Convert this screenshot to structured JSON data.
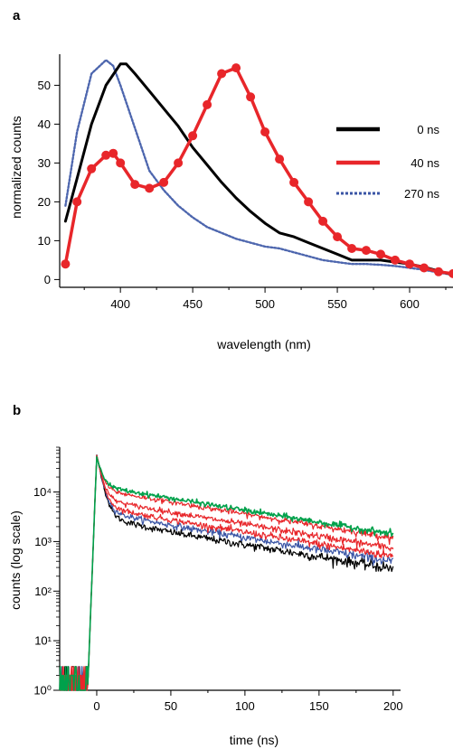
{
  "chart_data": [
    {
      "panel": "a",
      "type": "line",
      "title": "",
      "xlabel": "wavelength (nm)",
      "ylabel": "normalized counts",
      "xlim": [
        358,
        630
      ],
      "ylim": [
        -2,
        58
      ],
      "x_ticks": [
        400,
        450,
        500,
        550,
        600
      ],
      "y_ticks": [
        0,
        10,
        20,
        30,
        40,
        50
      ],
      "grid": false,
      "legend_position": "top-right",
      "series": [
        {
          "name": "0 ns",
          "color": "#000000",
          "style": "solid",
          "x": [
            362,
            370,
            380,
            390,
            400,
            404,
            410,
            420,
            430,
            440,
            450,
            460,
            470,
            480,
            490,
            500,
            510,
            520,
            530,
            540,
            550,
            560,
            570,
            580,
            590,
            600,
            610,
            620,
            630
          ],
          "y": [
            15,
            26,
            40,
            50,
            55.5,
            55.5,
            53,
            48.5,
            44,
            39.5,
            34,
            29.5,
            25,
            21,
            17.5,
            14.5,
            12,
            11,
            9.5,
            8,
            6.5,
            5,
            5,
            5,
            4.5,
            4,
            3.2,
            2.2,
            1.2
          ]
        },
        {
          "name": "40 ns",
          "color": "#e8262a",
          "style": "solid-markers",
          "x": [
            362,
            370,
            380,
            390,
            395,
            400,
            410,
            420,
            430,
            440,
            450,
            460,
            470,
            480,
            490,
            500,
            510,
            520,
            530,
            540,
            550,
            560,
            570,
            580,
            590,
            600,
            610,
            620,
            630
          ],
          "y": [
            4,
            20,
            28.5,
            32,
            32.5,
            30,
            24.5,
            23.5,
            25,
            30,
            37,
            45,
            53,
            54.5,
            47,
            38,
            31,
            25,
            20,
            15,
            11,
            8,
            7.5,
            6.5,
            5,
            4,
            3,
            2,
            1.5
          ]
        },
        {
          "name": "270 ns",
          "color": "#3a55a5",
          "style": "dotted",
          "x": [
            362,
            370,
            380,
            390,
            395,
            400,
            410,
            420,
            430,
            440,
            450,
            460,
            470,
            480,
            490,
            500,
            510,
            520,
            530,
            540,
            550,
            560,
            570,
            580,
            590,
            600,
            610,
            620,
            630
          ],
          "y": [
            19,
            38,
            53,
            56.5,
            55,
            50,
            39,
            28,
            23,
            19,
            16,
            13.5,
            12,
            10.5,
            9.5,
            8.5,
            8,
            7,
            6,
            5,
            4.5,
            4,
            4,
            3.8,
            3.5,
            3,
            2.5,
            1.8,
            1.2
          ]
        }
      ]
    },
    {
      "panel": "b",
      "type": "line",
      "title": "",
      "xlabel": "time (ns)",
      "ylabel": "counts (log scale)",
      "xlim": [
        -25,
        205
      ],
      "ylim": [
        1,
        80000
      ],
      "yscale": "log",
      "x_ticks": [
        0,
        50,
        100,
        150,
        200
      ],
      "y_ticks": [
        1,
        10,
        100,
        1000,
        10000
      ],
      "y_tick_labels": [
        "10⁰",
        "10¹",
        "10²",
        "10³",
        "10⁴"
      ],
      "grid": false,
      "legend_position": "none",
      "series": [
        {
          "color": "#00a14b",
          "level": 50,
          "x": [
            -25,
            200
          ],
          "y": [
            55000,
            50
          ]
        },
        {
          "color": "#e8262a",
          "level": 42,
          "x": [
            -25,
            200
          ],
          "y": [
            55000,
            42
          ]
        },
        {
          "color": "#e8262a",
          "level": 26,
          "x": [
            -25,
            200
          ],
          "y": [
            55000,
            26
          ]
        },
        {
          "color": "#e8262a",
          "level": 18,
          "x": [
            -25,
            200
          ],
          "y": [
            55000,
            18
          ]
        },
        {
          "color": "#3a55a5",
          "level": 14,
          "x": [
            -25,
            200
          ],
          "y": [
            55000,
            14
          ]
        },
        {
          "color": "#000000",
          "level": 10,
          "x": [
            -25,
            200
          ],
          "y": [
            55000,
            10
          ]
        }
      ]
    }
  ],
  "labels": {
    "panel_a": "a",
    "panel_b": "b"
  }
}
